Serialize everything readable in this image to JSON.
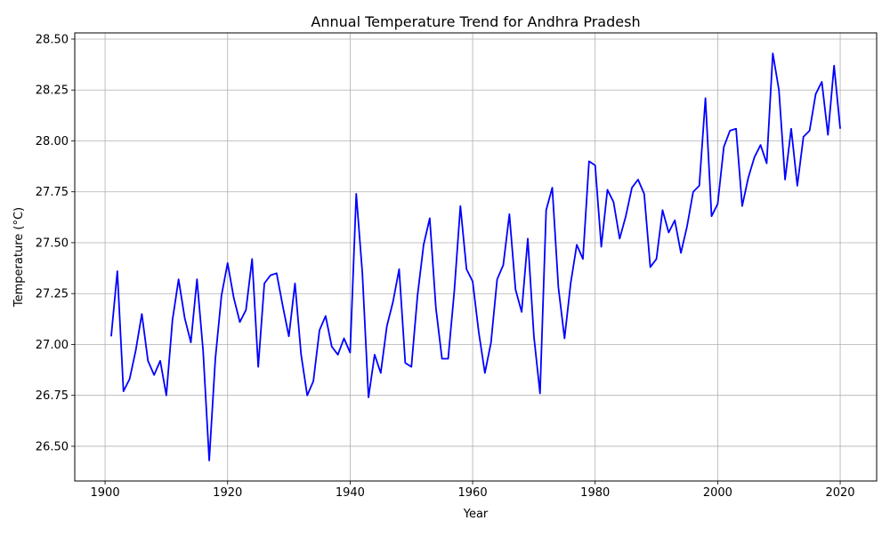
{
  "chart_data": {
    "type": "line",
    "title": "Annual Temperature Trend for Andhra Pradesh",
    "xlabel": "Year",
    "ylabel": "Temperature (°C)",
    "xlim": [
      1895.05,
      2025.95
    ],
    "ylim": [
      26.3295,
      28.5305
    ],
    "xticks": [
      1900,
      1920,
      1940,
      1960,
      1980,
      2000,
      2020
    ],
    "yticks": [
      26.5,
      26.75,
      27.0,
      27.25,
      27.5,
      27.75,
      28.0,
      28.25,
      28.5
    ],
    "grid": true,
    "line_color": "#0000ff",
    "series": [
      {
        "x": [
          1901,
          1902,
          1903,
          1904,
          1905,
          1906,
          1907,
          1908,
          1909,
          1910,
          1911,
          1912,
          1913,
          1914,
          1915,
          1916,
          1917,
          1918,
          1919,
          1920,
          1921,
          1922,
          1923,
          1924,
          1925,
          1926,
          1927,
          1928,
          1929,
          1930,
          1931,
          1932,
          1933,
          1934,
          1935,
          1936,
          1937,
          1938,
          1939,
          1940,
          1941,
          1942,
          1943,
          1944,
          1945,
          1946,
          1947,
          1948,
          1949,
          1950,
          1951,
          1952,
          1953,
          1954,
          1955,
          1956,
          1957,
          1958,
          1959,
          1960,
          1961,
          1962,
          1963,
          1964,
          1965,
          1966,
          1967,
          1968,
          1969,
          1970,
          1971,
          1972,
          1973,
          1974,
          1975,
          1976,
          1977,
          1978,
          1979,
          1980,
          1981,
          1982,
          1983,
          1984,
          1985,
          1986,
          1987,
          1988,
          1989,
          1990,
          1991,
          1992,
          1993,
          1994,
          1995,
          1996,
          1997,
          1998,
          1999,
          2000,
          2001,
          2002,
          2003,
          2004,
          2005,
          2006,
          2007,
          2008,
          2009,
          2010,
          2011,
          2012,
          2013,
          2014,
          2015,
          2016,
          2017,
          2018,
          2019,
          2020
        ],
        "values": [
          27.04,
          27.36,
          26.77,
          26.83,
          26.97,
          27.15,
          26.92,
          26.85,
          26.92,
          26.75,
          27.12,
          27.32,
          27.13,
          27.01,
          27.32,
          26.97,
          26.43,
          26.93,
          27.24,
          27.4,
          27.23,
          27.11,
          27.17,
          27.42,
          26.89,
          27.3,
          27.34,
          27.35,
          27.19,
          27.04,
          27.3,
          26.95,
          26.75,
          26.82,
          27.07,
          27.14,
          26.99,
          26.95,
          27.03,
          26.96,
          27.74,
          27.35,
          26.74,
          26.95,
          26.86,
          27.09,
          27.21,
          27.37,
          26.91,
          26.89,
          27.24,
          27.49,
          27.62,
          27.18,
          26.93,
          26.93,
          27.26,
          27.68,
          27.37,
          27.31,
          27.06,
          26.86,
          27.01,
          27.32,
          27.39,
          27.64,
          27.27,
          27.16,
          27.52,
          27.04,
          26.76,
          27.66,
          27.77,
          27.28,
          27.03,
          27.3,
          27.49,
          27.42,
          27.9,
          27.88,
          27.48,
          27.76,
          27.7,
          27.52,
          27.63,
          27.77,
          27.81,
          27.74,
          27.38,
          27.42,
          27.66,
          27.55,
          27.61,
          27.45,
          27.58,
          27.75,
          27.78,
          28.21,
          27.63,
          27.69,
          27.97,
          28.05,
          28.06,
          27.68,
          27.82,
          27.92,
          27.98,
          27.89,
          28.43,
          28.25,
          27.81,
          28.06,
          27.78,
          28.02,
          28.05,
          28.23,
          28.29,
          28.03,
          28.37,
          28.06
        ]
      }
    ]
  }
}
